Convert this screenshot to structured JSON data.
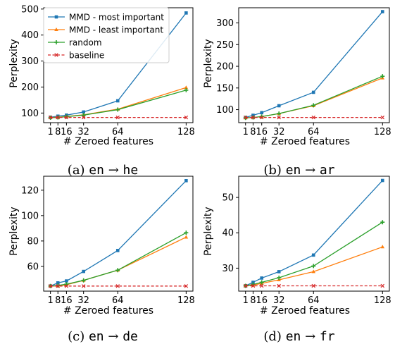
{
  "legend": {
    "entries": [
      "MMD - most important",
      "MMD - least important",
      "random",
      "baseline"
    ],
    "placement": "upper-left of panel (a)"
  },
  "colors": {
    "most": "#1f77b4",
    "least": "#ff7f0e",
    "random": "#2ca02c",
    "baseline": "#d62728"
  },
  "chart_data": [
    {
      "type": "line",
      "caption": "(a) en → he",
      "caption_prefix": "(a) ",
      "caption_src": "en",
      "caption_arrow": " → ",
      "caption_tgt": "he",
      "xlabel": "# Zeroed features",
      "ylabel": "Perplexity",
      "x": [
        1,
        8,
        16,
        32,
        64,
        128
      ],
      "xticks": [
        "1",
        "8",
        "16",
        "32",
        "64",
        "128"
      ],
      "yticks": [
        100,
        200,
        300,
        400,
        500
      ],
      "ylim": [
        63,
        505
      ],
      "grid": false,
      "series": [
        {
          "name": "MMD - most important",
          "values": [
            84,
            88,
            92,
            104,
            147,
            485
          ]
        },
        {
          "name": "MMD - least important",
          "values": [
            83,
            84,
            87,
            93,
            115,
            198
          ]
        },
        {
          "name": "random",
          "values": [
            82,
            83,
            86,
            92,
            113,
            188
          ]
        },
        {
          "name": "baseline",
          "values": [
            83,
            83,
            83,
            83,
            83,
            83
          ]
        }
      ]
    },
    {
      "type": "line",
      "caption": "(b) en → ar",
      "caption_prefix": "(b) ",
      "caption_src": "en",
      "caption_arrow": " → ",
      "caption_tgt": "ar",
      "xlabel": "# Zeroed features",
      "ylabel": "Perplexity",
      "x": [
        1,
        8,
        16,
        32,
        64,
        128
      ],
      "xticks": [
        "1",
        "8",
        "16",
        "32",
        "64",
        "128"
      ],
      "yticks": [
        100,
        150,
        200,
        250,
        300
      ],
      "ylim": [
        70,
        335
      ],
      "grid": false,
      "series": [
        {
          "name": "MMD - most important",
          "values": [
            82,
            87,
            93,
            109,
            140,
            326
          ]
        },
        {
          "name": "MMD - least important",
          "values": [
            81,
            82,
            84,
            91,
            109,
            173
          ]
        },
        {
          "name": "random",
          "values": [
            81,
            82,
            84,
            91,
            110,
            177
          ]
        },
        {
          "name": "baseline",
          "values": [
            82,
            82,
            82,
            82,
            82,
            82
          ]
        }
      ]
    },
    {
      "type": "line",
      "caption": "(c) en → de",
      "caption_prefix": "(c) ",
      "caption_src": "en",
      "caption_arrow": " → ",
      "caption_tgt": "de",
      "xlabel": "# Zeroed features",
      "ylabel": "Perplexity",
      "x": [
        1,
        8,
        16,
        32,
        64,
        128
      ],
      "xticks": [
        "1",
        "8",
        "16",
        "32",
        "64",
        "128"
      ],
      "yticks": [
        60,
        80,
        100,
        120
      ],
      "ylim": [
        40.5,
        131
      ],
      "grid": false,
      "series": [
        {
          "name": "MMD - most important",
          "values": [
            44.5,
            47,
            48.5,
            56,
            72.5,
            127.5
          ]
        },
        {
          "name": "MMD - least important",
          "values": [
            44.5,
            44.5,
            45.5,
            49,
            57,
            83
          ]
        },
        {
          "name": "random",
          "values": [
            44.5,
            45,
            46,
            49,
            57,
            86.5
          ]
        },
        {
          "name": "baseline",
          "values": [
            44.5,
            44.5,
            44.5,
            44.5,
            44.5,
            44.5
          ]
        }
      ]
    },
    {
      "type": "line",
      "caption": "(d) en → fr",
      "caption_prefix": "(d) ",
      "caption_src": "en",
      "caption_arrow": " → ",
      "caption_tgt": "fr",
      "xlabel": "# Zeroed features",
      "ylabel": "Perplexity",
      "x": [
        1,
        8,
        16,
        32,
        64,
        128
      ],
      "xticks": [
        "1",
        "8",
        "16",
        "32",
        "64",
        "128"
      ],
      "yticks": [
        30,
        40,
        50
      ],
      "ylim": [
        23.5,
        56
      ],
      "grid": false,
      "series": [
        {
          "name": "MMD - most important",
          "values": [
            25,
            26,
            27.2,
            29,
            33.7,
            54.8
          ]
        },
        {
          "name": "MMD - least important",
          "values": [
            25,
            25.2,
            25.7,
            26.7,
            29,
            36
          ]
        },
        {
          "name": "random",
          "values": [
            25,
            25.4,
            26,
            27.3,
            30.6,
            43
          ]
        },
        {
          "name": "baseline",
          "values": [
            25,
            25,
            25,
            25,
            25,
            25
          ]
        }
      ]
    }
  ]
}
